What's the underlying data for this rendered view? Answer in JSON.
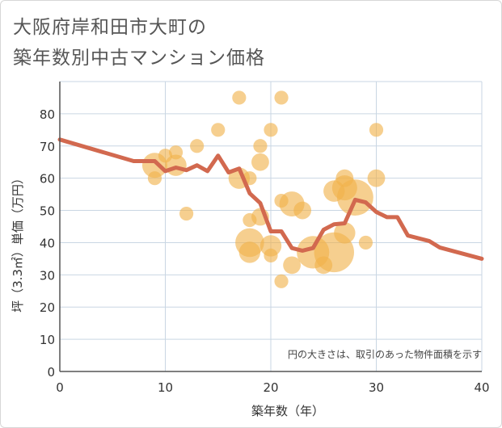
{
  "chart_data": {
    "type": "scatter",
    "title_lines": [
      "大阪府岸和田市大町の",
      "築年数別中古マンション価格"
    ],
    "xlabel": "築年数（年）",
    "ylabel": "坪（3.3㎡）単価（万円）",
    "note": "円の大きさは、取引のあった物件面積を示す",
    "xlim": [
      0,
      40
    ],
    "ylim": [
      0,
      90
    ],
    "x_ticks": [
      0,
      10,
      20,
      30,
      40
    ],
    "y_ticks": [
      0,
      10,
      20,
      30,
      40,
      50,
      60,
      70,
      80
    ],
    "grid": true,
    "colors": {
      "bubble": "#f0b24a",
      "line": "#d2694f",
      "grid": "#c9d6e3",
      "axis": "#555555"
    },
    "bubbles": [
      {
        "x": 9,
        "y": 64,
        "size": 5
      },
      {
        "x": 9,
        "y": 60,
        "size": 2
      },
      {
        "x": 10,
        "y": 67,
        "size": 2
      },
      {
        "x": 11,
        "y": 68,
        "size": 2
      },
      {
        "x": 11,
        "y": 64,
        "size": 4
      },
      {
        "x": 12,
        "y": 49,
        "size": 2
      },
      {
        "x": 13,
        "y": 70,
        "size": 2
      },
      {
        "x": 15,
        "y": 75,
        "size": 2
      },
      {
        "x": 17,
        "y": 85,
        "size": 2
      },
      {
        "x": 17,
        "y": 60,
        "size": 4
      },
      {
        "x": 18,
        "y": 60,
        "size": 2
      },
      {
        "x": 18,
        "y": 47,
        "size": 2
      },
      {
        "x": 19,
        "y": 70,
        "size": 2
      },
      {
        "x": 19,
        "y": 65,
        "size": 3
      },
      {
        "x": 19,
        "y": 48,
        "size": 3
      },
      {
        "x": 18,
        "y": 40,
        "size": 6
      },
      {
        "x": 18,
        "y": 37,
        "size": 4
      },
      {
        "x": 20,
        "y": 75,
        "size": 2
      },
      {
        "x": 20,
        "y": 39,
        "size": 4
      },
      {
        "x": 20,
        "y": 36,
        "size": 2
      },
      {
        "x": 21,
        "y": 85,
        "size": 2
      },
      {
        "x": 21,
        "y": 53,
        "size": 2
      },
      {
        "x": 21,
        "y": 28,
        "size": 2
      },
      {
        "x": 22,
        "y": 52,
        "size": 5
      },
      {
        "x": 22,
        "y": 33,
        "size": 3
      },
      {
        "x": 23,
        "y": 50,
        "size": 3
      },
      {
        "x": 24,
        "y": 37,
        "size": 7
      },
      {
        "x": 25,
        "y": 33,
        "size": 3
      },
      {
        "x": 26,
        "y": 37,
        "size": 9
      },
      {
        "x": 26,
        "y": 56,
        "size": 4
      },
      {
        "x": 27,
        "y": 60,
        "size": 3
      },
      {
        "x": 27,
        "y": 57,
        "size": 5
      },
      {
        "x": 27,
        "y": 43,
        "size": 4
      },
      {
        "x": 28,
        "y": 54,
        "size": 8
      },
      {
        "x": 29,
        "y": 40,
        "size": 2
      },
      {
        "x": 30,
        "y": 75,
        "size": 2
      },
      {
        "x": 30,
        "y": 60,
        "size": 3
      }
    ],
    "trend": {
      "x": [
        0,
        7,
        9,
        10,
        11,
        12,
        13,
        14,
        15,
        16,
        17,
        18,
        19,
        20,
        21,
        22,
        23,
        24,
        25,
        26,
        27,
        28,
        29,
        30,
        31,
        32,
        33,
        35,
        36,
        40
      ],
      "y": [
        72,
        65.3,
        65.3,
        62.2,
        63.3,
        62.5,
        64,
        62.2,
        67,
        61.8,
        63,
        55.3,
        52.3,
        43.5,
        43.5,
        38.3,
        37.5,
        38.3,
        44,
        45.7,
        46,
        53.3,
        52.5,
        49.5,
        47.9,
        47.9,
        42.2,
        40.5,
        38.5,
        35
      ]
    }
  }
}
